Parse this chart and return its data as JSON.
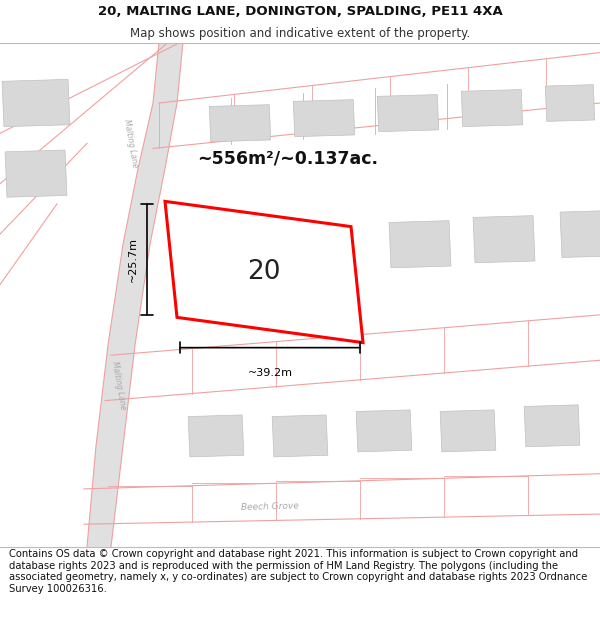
{
  "title": "20, MALTING LANE, DONINGTON, SPALDING, PE11 4XA",
  "subtitle": "Map shows position and indicative extent of the property.",
  "footer": "Contains OS data © Crown copyright and database right 2021. This information is subject to Crown copyright and database rights 2023 and is reproduced with the permission of HM Land Registry. The polygons (including the associated geometry, namely x, y co-ordinates) are subject to Crown copyright and database rights 2023 Ordnance Survey 100026316.",
  "title_fontsize": 9.5,
  "subtitle_fontsize": 8.5,
  "footer_fontsize": 7.2,
  "map_bg": "#f2f2f2",
  "header_bg": "#ffffff",
  "footer_bg": "#ffffff",
  "road_fill": "#e8e8e8",
  "road_edge": "#c8b8b8",
  "boundary_color": "#f0a0a0",
  "plot_color": "#ff0000",
  "building_color": "#d8d8d8",
  "building_edge": "#c0c0c0",
  "dim_color": "#000000",
  "label_color": "#aaaaaa",
  "plot_label": "20",
  "area_text": "~556m²/~0.137ac.",
  "dim_h_label": "~39.2m",
  "dim_v_label": "~25.7m"
}
